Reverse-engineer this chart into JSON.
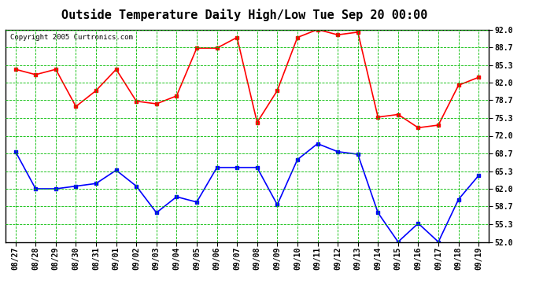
{
  "title": "Outside Temperature Daily High/Low Tue Sep 20 00:00",
  "copyright": "Copyright 2005 Curtronics.com",
  "x_labels": [
    "08/27",
    "08/28",
    "08/29",
    "08/30",
    "08/31",
    "09/01",
    "09/02",
    "09/03",
    "09/04",
    "09/05",
    "09/06",
    "09/07",
    "09/08",
    "09/09",
    "09/10",
    "09/11",
    "09/12",
    "09/13",
    "09/14",
    "09/15",
    "09/16",
    "09/17",
    "09/18",
    "09/19"
  ],
  "high_values": [
    84.5,
    83.5,
    84.5,
    77.5,
    80.5,
    84.5,
    78.5,
    78.0,
    79.5,
    88.5,
    88.5,
    90.5,
    74.5,
    80.5,
    90.5,
    92.0,
    91.0,
    91.5,
    75.5,
    76.0,
    73.5,
    74.0,
    81.5,
    83.0
  ],
  "low_values": [
    69.0,
    62.0,
    62.0,
    62.5,
    63.0,
    65.5,
    62.5,
    57.5,
    60.5,
    59.5,
    66.0,
    66.0,
    66.0,
    59.0,
    67.5,
    70.5,
    69.0,
    68.5,
    57.5,
    52.0,
    55.5,
    52.0,
    60.0,
    64.5
  ],
  "high_color": "#ff0000",
  "low_color": "#0000ff",
  "bg_color": "#ffffff",
  "plot_bg_color": "#ffffff",
  "grid_color": "#00bb00",
  "border_color": "#000000",
  "y_ticks": [
    52.0,
    55.3,
    58.7,
    62.0,
    65.3,
    68.7,
    72.0,
    75.3,
    78.7,
    82.0,
    85.3,
    88.7,
    92.0
  ],
  "ylim": [
    52.0,
    92.0
  ],
  "title_fontsize": 11,
  "tick_fontsize": 7,
  "copyright_fontsize": 6.5,
  "marker": "s",
  "marker_size": 2.5,
  "line_width": 1.2
}
